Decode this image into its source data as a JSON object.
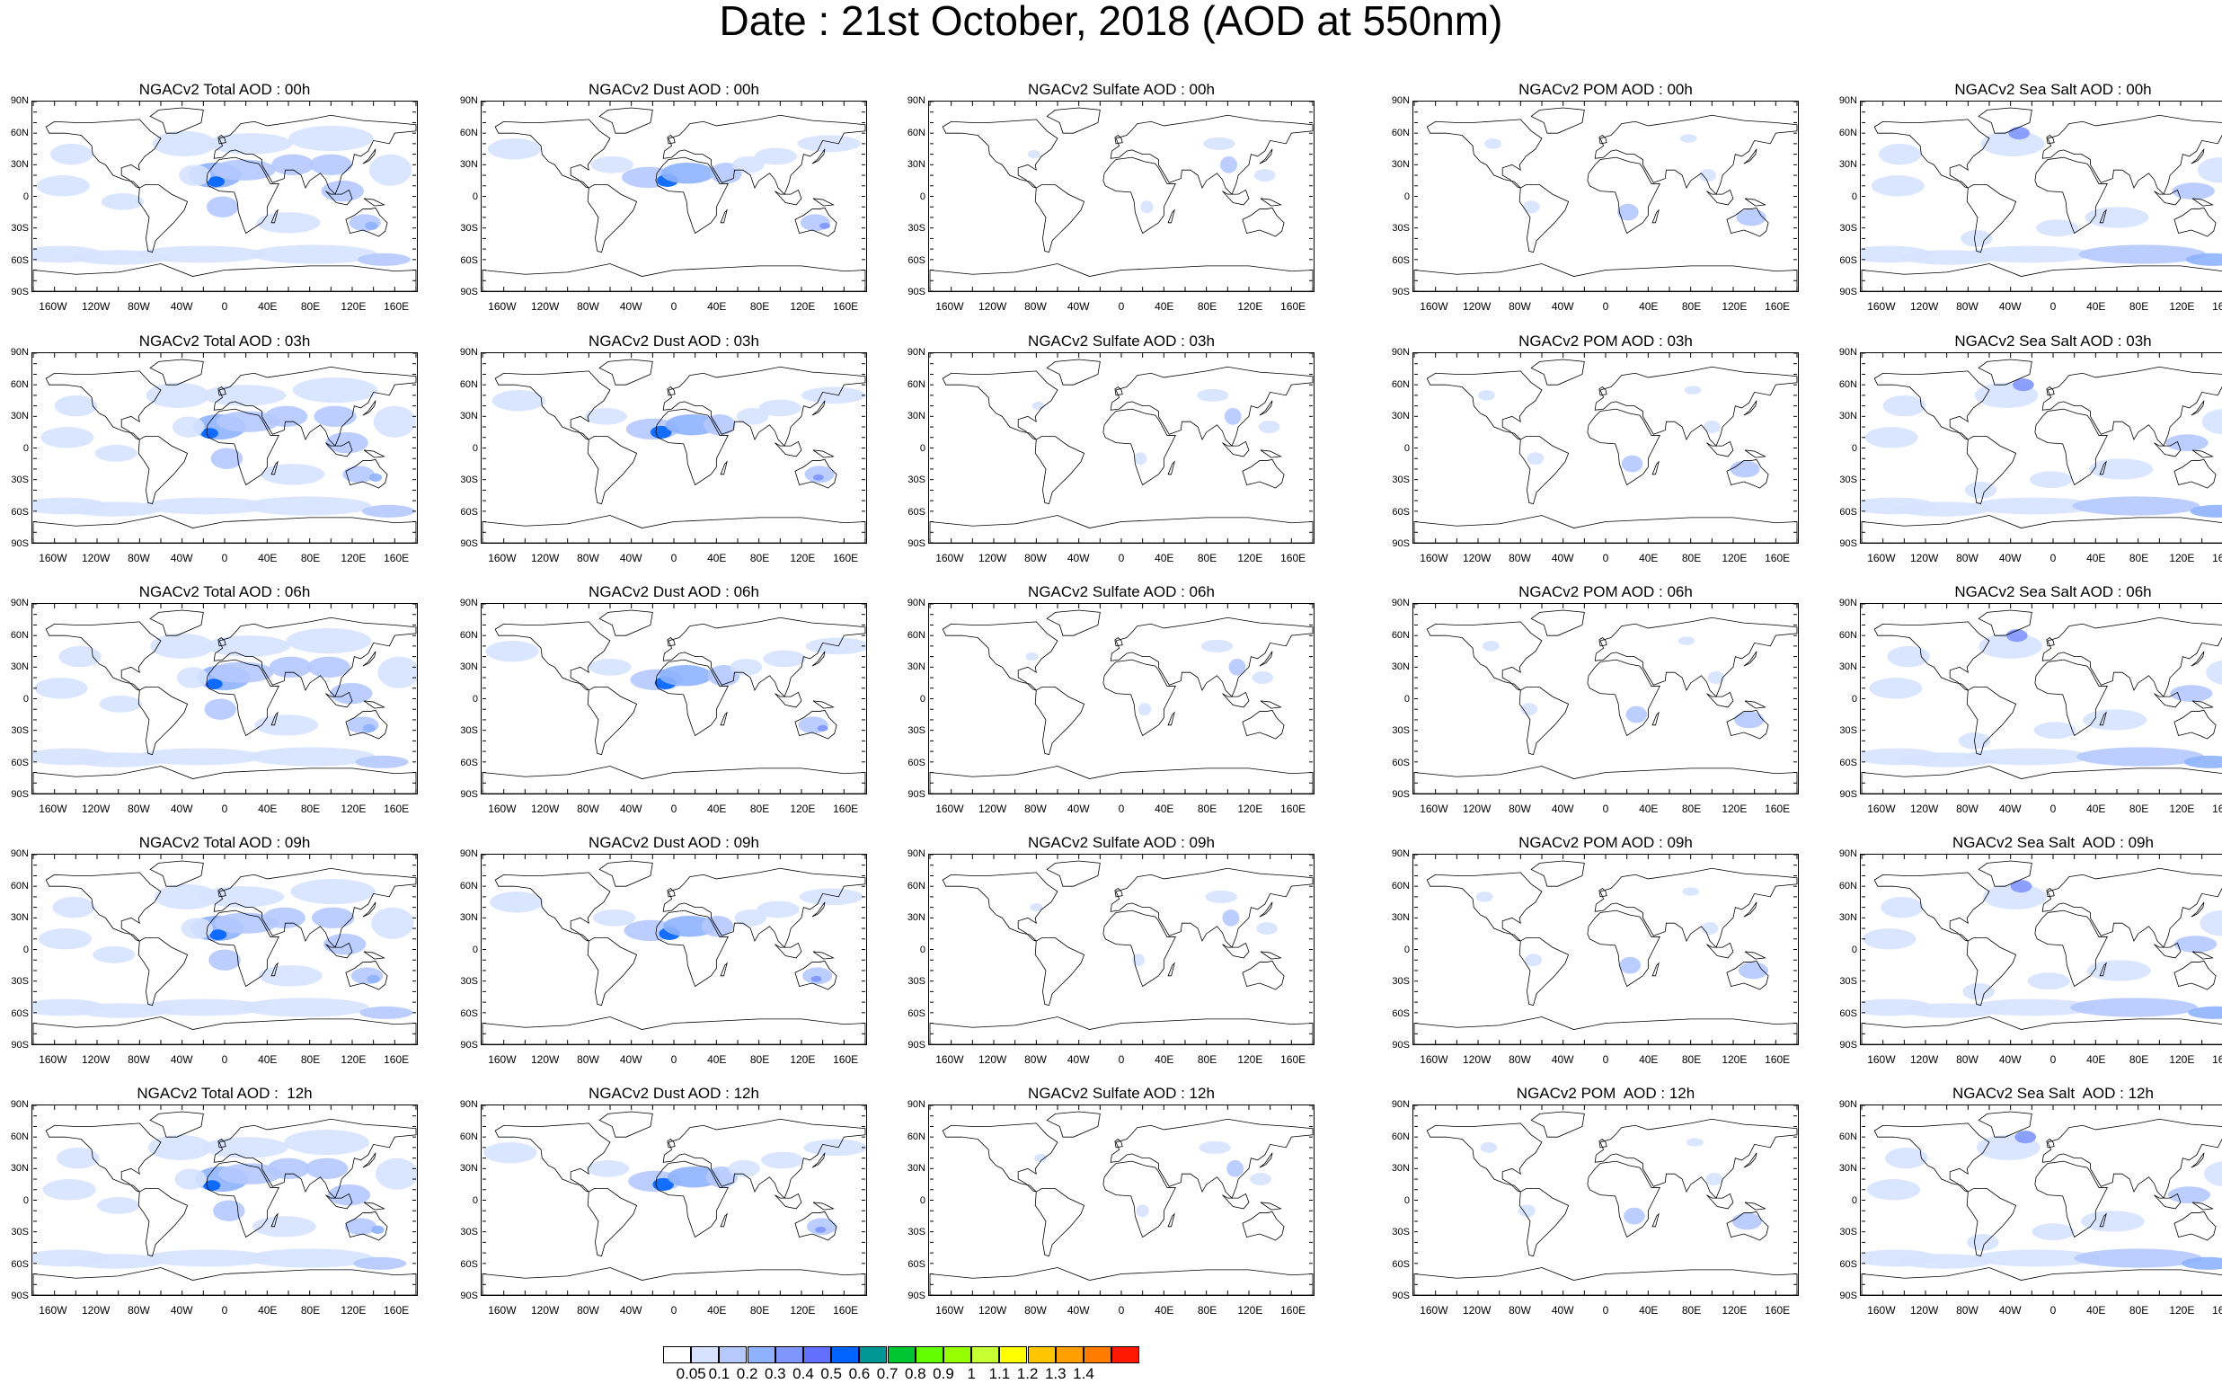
{
  "title": "Date : 21st October, 2018 (AOD at 550nm)",
  "rows": [
    [
      "NGACv2 Total AOD : 00h",
      "NGACv2 Dust AOD : 00h",
      "NGACv2 Sulfate AOD : 00h",
      "NGACv2 POM AOD : 00h",
      "NGACv2 Sea Salt AOD : 00h"
    ],
    [
      "NGACv2 Total AOD : 03h",
      "NGACv2 Dust AOD : 03h",
      "NGACv2 Sulfate AOD : 03h",
      "NGACv2 POM AOD : 03h",
      "NGACv2 Sea Salt AOD : 03h"
    ],
    [
      "NGACv2 Total AOD : 06h",
      "NGACv2 Dust AOD : 06h",
      "NGACv2 Sulfate AOD : 06h",
      "NGACv2 POM AOD : 06h",
      "NGACv2 Sea Salt AOD : 06h"
    ],
    [
      "NGACv2 Total AOD : 09h",
      "NGACv2 Dust AOD : 09h",
      "NGACv2 Sulfate AOD : 09h",
      "NGACv2 POM AOD : 09h",
      "NGACv2 Sea Salt  AOD : 09h"
    ],
    [
      "NGACv2 Total AOD :  12h",
      "NGACv2 Dust AOD : 12h",
      "NGACv2 Sulfate AOD : 12h",
      "NGACv2 POM  AOD : 12h",
      "NGACv2 Sea Salt  AOD : 12h"
    ]
  ],
  "lat_labels": [
    "90N",
    "60N",
    "30N",
    "0",
    "30S",
    "60S",
    "90S"
  ],
  "lon_labels": [
    "160W",
    "120W",
    "80W",
    "40W",
    "0",
    "40E",
    "80E",
    "120E",
    "160E"
  ],
  "colorbar": {
    "levels": [
      "0.05",
      "0.1",
      "0.2",
      "0.3",
      "0.4",
      "0.5",
      "0.6",
      "0.7",
      "0.8",
      "0.9",
      "1",
      "1.1",
      "1.2",
      "1.3",
      "1.4"
    ],
    "colors": [
      "#ffffff",
      "#d6e2ff",
      "#b5c9ff",
      "#8eb2ff",
      "#7f96ff",
      "#6370ff",
      "#0063ff",
      "#009696",
      "#00c633",
      "#63ff00",
      "#96ff00",
      "#c6ff33",
      "#ffff00",
      "#ffc600",
      "#ffa000",
      "#ff7c00",
      "#ff1900"
    ]
  }
}
